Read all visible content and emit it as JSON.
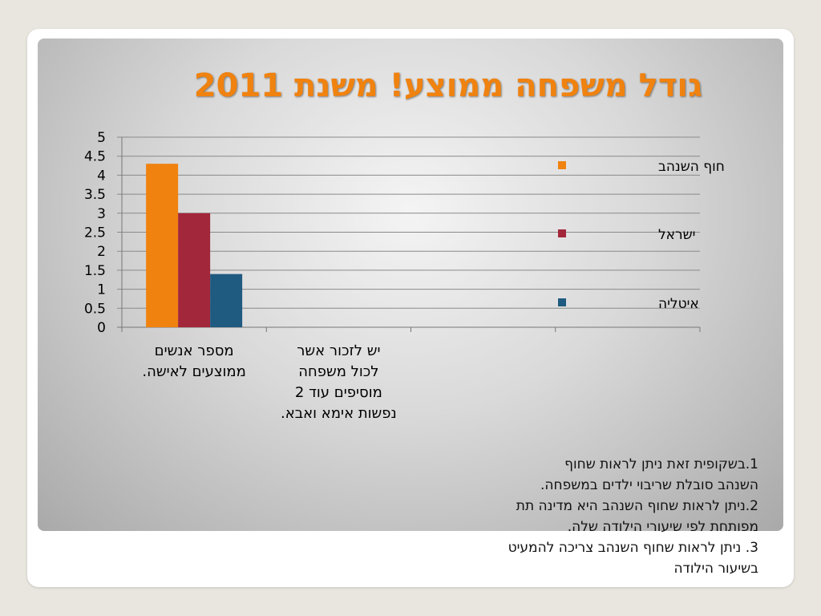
{
  "slide": {
    "title": "גודל משפחה ממוצע! משנת 2011",
    "notes": [
      "1.בשקופית זאת ניתן לראות שחוף",
      "השנהב סובלת שריבוי ילדים במשפחה.",
      "2.ניתן לראות שחוף השנהב היא מדינה תת",
      "מפותחת לפי שיעורי הילודה שלה.",
      "3. ניתן לראות שחוף השנהב צריכה להמעיט",
      "בשיעור הילודה"
    ]
  },
  "chart_data": {
    "type": "bar",
    "title": "",
    "xlabel": "",
    "ylabel": "",
    "ylim": [
      0,
      5
    ],
    "yticks": [
      "0",
      "0.5",
      "1",
      "1.5",
      "2",
      "2.5",
      "3",
      "3.5",
      "4",
      "4.5",
      "5"
    ],
    "grid": true,
    "legend_position": "right",
    "categories": [
      {
        "lines": [
          "מספר אנשים",
          "ממוצעים לאישה."
        ]
      },
      {
        "lines": [
          "יש לזכור אשר",
          "לכול משפחה",
          "מוסיפים עוד 2",
          "נפשות אימא ואבא."
        ]
      },
      {
        "lines": []
      },
      {
        "lines": []
      }
    ],
    "series": [
      {
        "name": "חוף השנהב",
        "color": "#f0820f",
        "values": [
          4.3,
          null,
          null,
          null
        ]
      },
      {
        "name": "ישראל",
        "color": "#a3273a",
        "values": [
          3.0,
          null,
          null,
          null
        ]
      },
      {
        "name": "איטליה",
        "color": "#1f5a80",
        "values": [
          1.4,
          null,
          null,
          null
        ]
      }
    ]
  }
}
